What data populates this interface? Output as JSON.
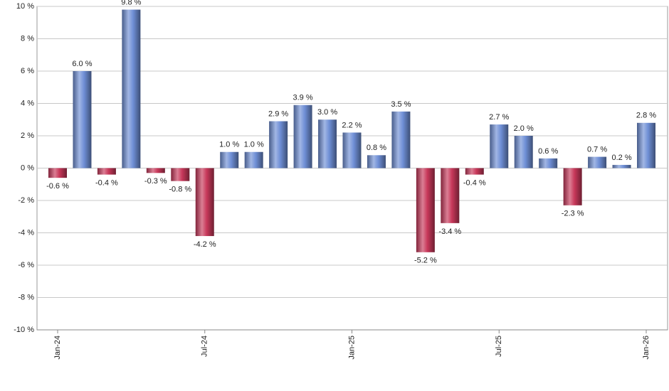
{
  "chart_data": {
    "type": "bar",
    "categories": [
      "Jan-24",
      null,
      null,
      null,
      null,
      null,
      "Jul-24",
      null,
      null,
      null,
      null,
      null,
      "Jan-25",
      null,
      null,
      null,
      null,
      null,
      "Jul-25",
      null,
      null,
      null,
      null,
      null,
      "Jan-26"
    ],
    "values": [
      -0.6,
      6.0,
      -0.4,
      9.8,
      -0.3,
      -0.8,
      -4.2,
      1.0,
      1.0,
      2.9,
      3.9,
      3.0,
      2.2,
      0.8,
      3.5,
      -5.2,
      -3.4,
      -0.4,
      2.7,
      2.0,
      0.6,
      -2.3,
      0.7,
      0.2,
      2.8
    ],
    "value_labels": [
      "-0.6 %",
      "6.0 %",
      "-0.4 %",
      "9.8 %",
      "-0.3 %",
      "-0.8 %",
      "-4.2 %",
      "1.0 %",
      "1.0 %",
      "2.9 %",
      "3.9 %",
      "3.0 %",
      "2.2 %",
      "0.8 %",
      "3.5 %",
      "-5.2 %",
      "-3.4 %",
      "-0.4 %",
      "2.7 %",
      "2.0 %",
      "0.6 %",
      "-2.3 %",
      "0.7 %",
      "0.2 %",
      "2.8 %"
    ],
    "positive_color": "#6f8fd6",
    "negative_color": "#c8385a",
    "ylim": [
      -10,
      10
    ],
    "yticks": [
      {
        "value": -10,
        "label": "-10 %"
      },
      {
        "value": -8,
        "label": "-8 %"
      },
      {
        "value": -6,
        "label": "-6 %"
      },
      {
        "value": -4,
        "label": "-4 %"
      },
      {
        "value": -2,
        "label": "-2 %"
      },
      {
        "value": 0,
        "label": "0 %"
      },
      {
        "value": 2,
        "label": "2 %"
      },
      {
        "value": 4,
        "label": "4 %"
      },
      {
        "value": 6,
        "label": "6 %"
      },
      {
        "value": 8,
        "label": "8 %"
      },
      {
        "value": 10,
        "label": "10 %"
      }
    ],
    "grid": true
  }
}
